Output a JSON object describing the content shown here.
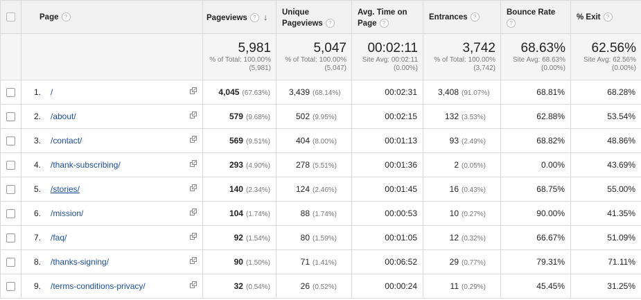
{
  "headers": {
    "page": "Page",
    "pageviews": "Pageviews",
    "unique_pageviews": "Unique Pageviews",
    "avg_time": "Avg. Time on Page",
    "entrances": "Entrances",
    "bounce_rate": "Bounce Rate",
    "exit": "% Exit",
    "help_icon": "?",
    "sort_icon": "↓"
  },
  "totals": {
    "pageviews": {
      "value": "5,981",
      "sub": "% of Total: 100.00% (5,981)"
    },
    "unique_pageviews": {
      "value": "5,047",
      "sub": "% of Total: 100.00% (5,047)"
    },
    "avg_time": {
      "value": "00:02:11",
      "sub": "Site Avg: 00:02:11 (0.00%)"
    },
    "entrances": {
      "value": "3,742",
      "sub": "% of Total: 100.00% (3,742)"
    },
    "bounce_rate": {
      "value": "68.63%",
      "sub": "Site Avg: 68.63% (0.00%)"
    },
    "exit": {
      "value": "62.56%",
      "sub": "Site Avg: 62.56% (0.00%)"
    }
  },
  "rows": [
    {
      "num": "1.",
      "page": "/",
      "pv": "4,045",
      "pv_pct": "(67.63%)",
      "upv": "3,439",
      "upv_pct": "(68.14%)",
      "time": "00:02:31",
      "ent": "3,408",
      "ent_pct": "(91.07%)",
      "bounce": "68.81%",
      "exit": "68.28%"
    },
    {
      "num": "2.",
      "page": "/about/",
      "pv": "579",
      "pv_pct": "(9.68%)",
      "upv": "502",
      "upv_pct": "(9.95%)",
      "time": "00:02:15",
      "ent": "132",
      "ent_pct": "(3.53%)",
      "bounce": "62.88%",
      "exit": "53.54%"
    },
    {
      "num": "3.",
      "page": "/contact/",
      "pv": "569",
      "pv_pct": "(9.51%)",
      "upv": "404",
      "upv_pct": "(8.00%)",
      "time": "00:01:13",
      "ent": "93",
      "ent_pct": "(2.49%)",
      "bounce": "68.82%",
      "exit": "48.86%"
    },
    {
      "num": "4.",
      "page": "/thank-subscribing/",
      "pv": "293",
      "pv_pct": "(4.90%)",
      "upv": "278",
      "upv_pct": "(5.51%)",
      "time": "00:01:36",
      "ent": "2",
      "ent_pct": "(0.05%)",
      "bounce": "0.00%",
      "exit": "43.69%"
    },
    {
      "num": "5.",
      "page": "/stories/",
      "pv": "140",
      "pv_pct": "(2.34%)",
      "upv": "124",
      "upv_pct": "(2.46%)",
      "time": "00:01:45",
      "ent": "16",
      "ent_pct": "(0.43%)",
      "bounce": "68.75%",
      "exit": "55.00%"
    },
    {
      "num": "6.",
      "page": "/mission/",
      "pv": "104",
      "pv_pct": "(1.74%)",
      "upv": "88",
      "upv_pct": "(1.74%)",
      "time": "00:00:53",
      "ent": "10",
      "ent_pct": "(0.27%)",
      "bounce": "90.00%",
      "exit": "41.35%"
    },
    {
      "num": "7.",
      "page": "/faq/",
      "pv": "92",
      "pv_pct": "(1.54%)",
      "upv": "80",
      "upv_pct": "(1.59%)",
      "time": "00:01:05",
      "ent": "12",
      "ent_pct": "(0.32%)",
      "bounce": "66.67%",
      "exit": "51.09%"
    },
    {
      "num": "8.",
      "page": "/thanks-signing/",
      "pv": "90",
      "pv_pct": "(1.50%)",
      "upv": "71",
      "upv_pct": "(1.41%)",
      "time": "00:06:52",
      "ent": "29",
      "ent_pct": "(0.77%)",
      "bounce": "79.31%",
      "exit": "71.11%"
    },
    {
      "num": "9.",
      "page": "/terms-conditions-privacy/",
      "pv": "32",
      "pv_pct": "(0.54%)",
      "upv": "26",
      "upv_pct": "(0.52%)",
      "time": "00:00:24",
      "ent": "11",
      "ent_pct": "(0.29%)",
      "bounce": "45.45%",
      "exit": "31.25%"
    }
  ],
  "colors": {
    "link": "#1a4b9c",
    "header_bg": "#f1f1f1",
    "totals_bg": "#f5f5f5",
    "muted": "#777777"
  }
}
